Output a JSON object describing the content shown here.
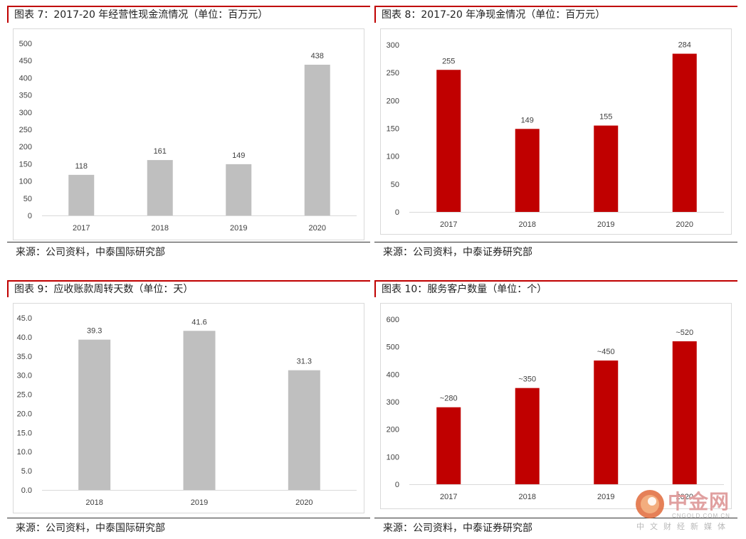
{
  "colors": {
    "accent": "#c00000",
    "gray_bar": "#bfbfbf",
    "red_bar": "#c00000"
  },
  "charts": [
    {
      "title": "图表 7：2017-20 年经营性现金流情况（单位：百万元）",
      "source": "来源：公司资料，中泰国际研究部"
    },
    {
      "title": "图表 8：2017-20 年净现金情况（单位：百万元）",
      "source": "来源：公司资料，中泰证券研究部"
    },
    {
      "title": "图表 9：应收账款周转天数（单位：天）",
      "source": "来源：公司资料，中泰国际研究部"
    },
    {
      "title": "图表 10：服务客户数量（单位：个）",
      "source": "来源：公司资料，中泰证券研究部"
    }
  ],
  "chart_data": [
    {
      "type": "bar",
      "categories": [
        "2017",
        "2018",
        "2019",
        "2020"
      ],
      "values": [
        118,
        161,
        149,
        438
      ],
      "value_labels": [
        "118",
        "161",
        "149",
        "438"
      ],
      "ylim": [
        0,
        500
      ],
      "yticks": [
        "0",
        "50",
        "100",
        "150",
        "200",
        "250",
        "300",
        "350",
        "400",
        "450",
        "500"
      ],
      "color": "#bfbfbf",
      "grid": false
    },
    {
      "type": "bar",
      "categories": [
        "2017",
        "2018",
        "2019",
        "2020"
      ],
      "values": [
        255,
        149,
        155,
        284
      ],
      "value_labels": [
        "255",
        "149",
        "155",
        "284"
      ],
      "ylim": [
        0,
        300
      ],
      "yticks": [
        "0",
        "50",
        "100",
        "150",
        "200",
        "250",
        "300"
      ],
      "color": "#c00000",
      "grid": false
    },
    {
      "type": "bar",
      "categories": [
        "2018",
        "2019",
        "2020"
      ],
      "values": [
        39.3,
        41.6,
        31.3
      ],
      "value_labels": [
        "39.3",
        "41.6",
        "31.3"
      ],
      "ylim": [
        0,
        45
      ],
      "yticks": [
        "0.0",
        "5.0",
        "10.0",
        "15.0",
        "20.0",
        "25.0",
        "30.0",
        "35.0",
        "40.0",
        "45.0"
      ],
      "color": "#bfbfbf",
      "grid": false
    },
    {
      "type": "bar",
      "categories": [
        "2017",
        "2018",
        "2019",
        "2020"
      ],
      "values": [
        280,
        350,
        450,
        520
      ],
      "value_labels": [
        "~280",
        "~350",
        "~450",
        "~520"
      ],
      "ylim": [
        0,
        600
      ],
      "yticks": [
        "0",
        "100",
        "200",
        "300",
        "400",
        "500",
        "600"
      ],
      "color": "#c00000",
      "grid": false
    }
  ],
  "watermark": {
    "name": "中金网",
    "domain": "CNGOLD.COM.CN",
    "subtitle": "中文财经新媒体"
  }
}
